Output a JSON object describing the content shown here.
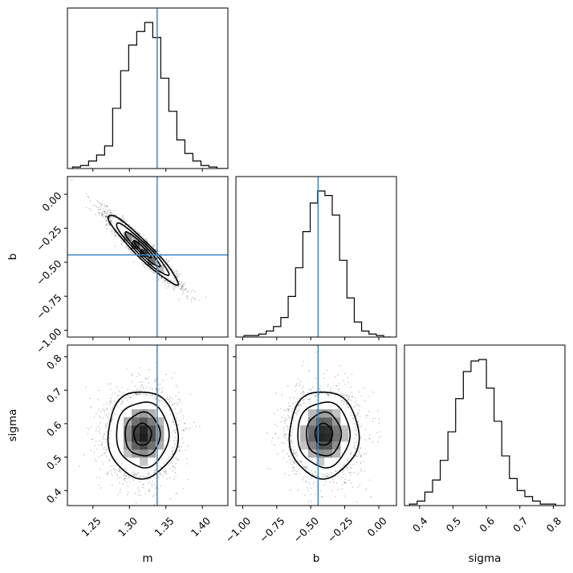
{
  "chart_data": {
    "type": "corner",
    "parameters": [
      "m",
      "b",
      "sigma"
    ],
    "axis_labels": [
      "m",
      "b",
      "sigma"
    ],
    "truths": [
      1.338,
      -0.446,
      null
    ],
    "truth_color": "#3a86c8",
    "hist_color": "#000000",
    "ranges": {
      "m": [
        1.215,
        1.435
      ],
      "b": [
        -1.05,
        0.13
      ],
      "sigma": [
        0.355,
        0.835
      ]
    },
    "ticks": {
      "m": {
        "values": [
          1.25,
          1.3,
          1.35,
          1.4
        ],
        "labels": [
          "1.25",
          "1.30",
          "1.35",
          "1.40"
        ]
      },
      "b": {
        "values": [
          -1.0,
          -0.75,
          -0.5,
          -0.25,
          0.0
        ],
        "labels": [
          "−1.00",
          "−0.75",
          "−0.50",
          "−0.25",
          "0.00"
        ]
      },
      "sigma": {
        "values": [
          0.4,
          0.5,
          0.6,
          0.7,
          0.8
        ],
        "labels": [
          "0.4",
          "0.5",
          "0.6",
          "0.7",
          "0.8"
        ]
      }
    },
    "histograms": {
      "m": {
        "edges": [
          1.222,
          1.233,
          1.244,
          1.255,
          1.266,
          1.277,
          1.288,
          1.299,
          1.31,
          1.321,
          1.332,
          1.343,
          1.354,
          1.365,
          1.376,
          1.387,
          1.398,
          1.409,
          1.42,
          1.431,
          1.442
        ],
        "counts": [
          0.01,
          0.02,
          0.05,
          0.09,
          0.15,
          0.4,
          0.65,
          0.82,
          0.91,
          0.97,
          0.87,
          0.6,
          0.38,
          0.19,
          0.1,
          0.05,
          0.02,
          0.01,
          0.0,
          0.0
        ]
      },
      "b": {
        "edges": [
          -0.99,
          -0.936,
          -0.882,
          -0.828,
          -0.774,
          -0.72,
          -0.666,
          -0.612,
          -0.558,
          -0.504,
          -0.45,
          -0.396,
          -0.342,
          -0.288,
          -0.234,
          -0.18,
          -0.126,
          -0.072,
          -0.018,
          0.036,
          0.09
        ],
        "counts": [
          0.01,
          0.01,
          0.02,
          0.04,
          0.07,
          0.13,
          0.27,
          0.46,
          0.7,
          0.89,
          0.97,
          0.94,
          0.81,
          0.51,
          0.26,
          0.1,
          0.04,
          0.02,
          0.01,
          0.0
        ]
      },
      "sigma": {
        "edges": [
          0.37,
          0.393,
          0.416,
          0.439,
          0.462,
          0.485,
          0.508,
          0.531,
          0.554,
          0.577,
          0.6,
          0.623,
          0.646,
          0.669,
          0.692,
          0.715,
          0.738,
          0.761,
          0.784,
          0.807,
          0.83
        ],
        "counts": [
          0.01,
          0.03,
          0.09,
          0.17,
          0.3,
          0.49,
          0.71,
          0.89,
          0.96,
          0.97,
          0.78,
          0.56,
          0.33,
          0.18,
          0.1,
          0.06,
          0.03,
          0.01,
          0.01,
          0.0
        ]
      }
    },
    "posterior_2d": {
      "mean": {
        "m": 1.318,
        "b": -0.405,
        "sigma": 0.568
      },
      "sd": {
        "m": 0.024,
        "b": 0.128,
        "sigma": 0.065
      },
      "correlation": {
        "m_b": -0.95,
        "m_sigma": 0.0,
        "b_sigma": 0.0
      },
      "contour_levels_sigma": [
        0.5,
        1.0,
        1.5,
        2.0
      ]
    }
  }
}
